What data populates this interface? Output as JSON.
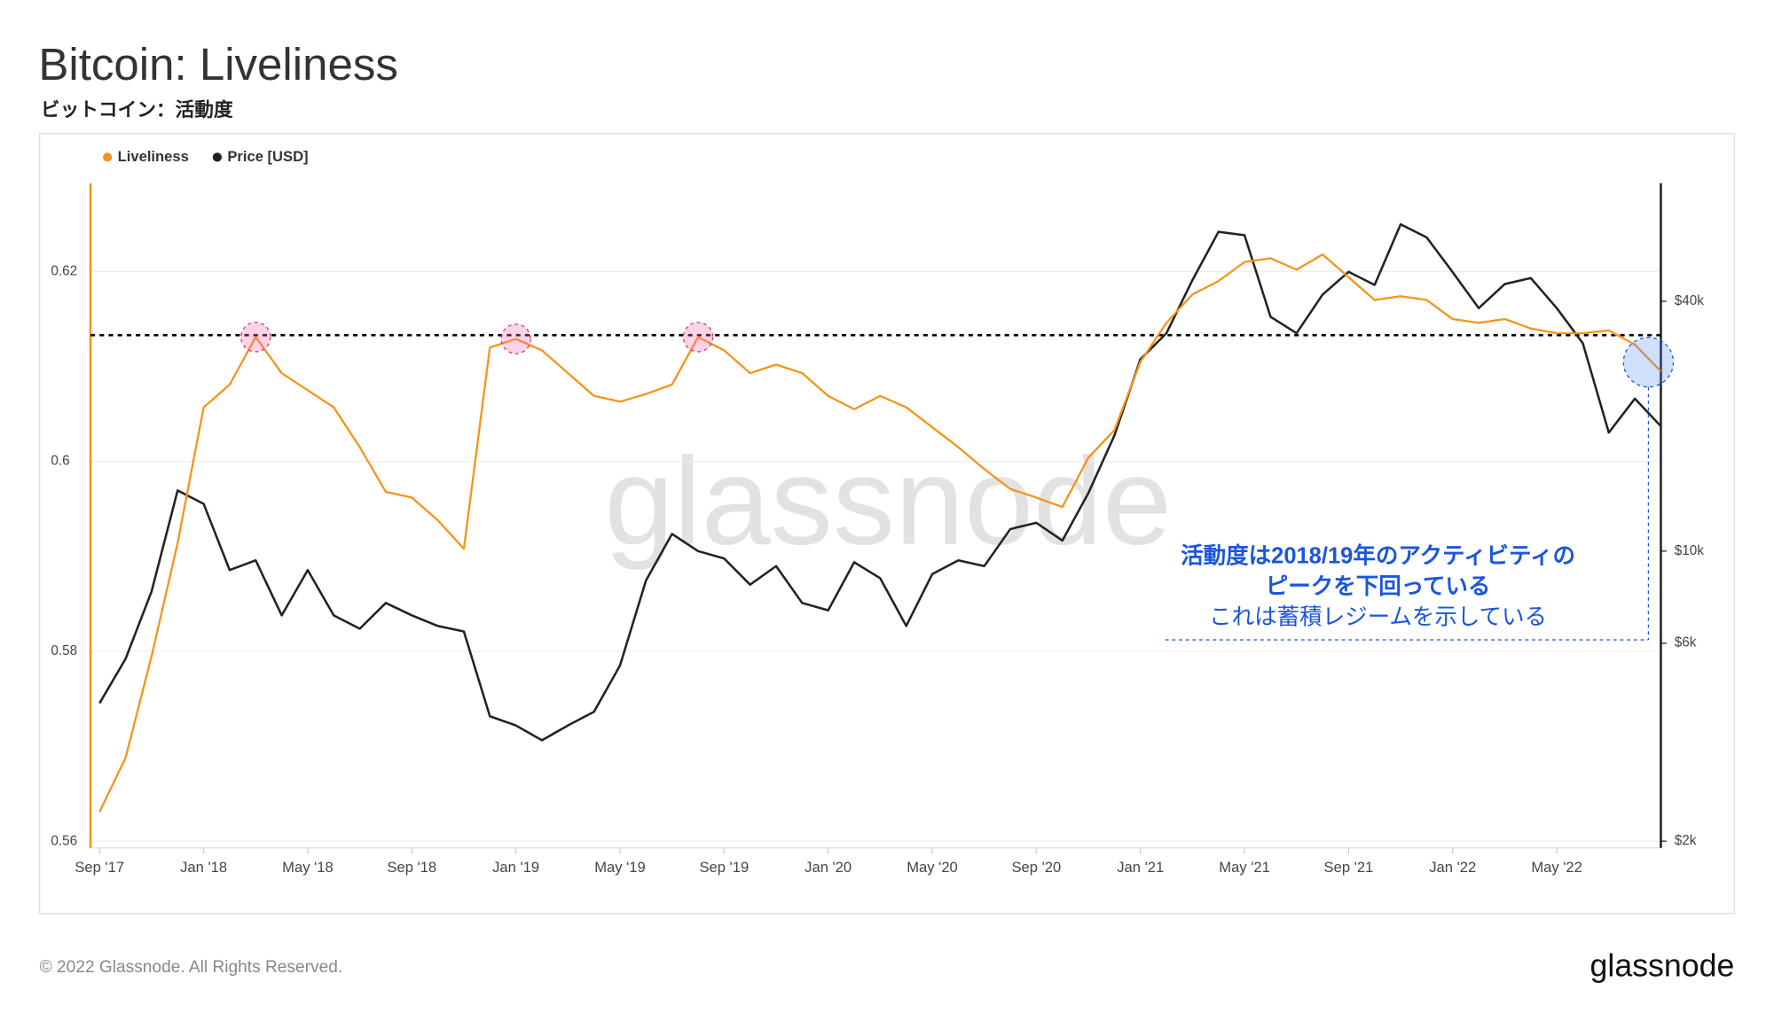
{
  "chart_data": {
    "type": "line",
    "title": "Bitcoin: Liveliness",
    "subtitle": "ビットコイン：活動度",
    "watermark": "glassnode",
    "footer": "© 2022 Glassnode. All Rights Reserved.",
    "brand": "glassnode",
    "annotations": [
      "活動度は2018/19年のアクティビティの",
      "ピークを下回っている",
      "これは蓄積レジームを示している"
    ],
    "reference_line": 0.6133,
    "x": [
      "2017-09",
      "2017-10",
      "2017-11",
      "2017-12",
      "2018-01",
      "2018-02",
      "2018-03",
      "2018-04",
      "2018-05",
      "2018-06",
      "2018-07",
      "2018-08",
      "2018-09",
      "2018-10",
      "2018-11",
      "2018-12",
      "2019-01",
      "2019-02",
      "2019-03",
      "2019-04",
      "2019-05",
      "2019-06",
      "2019-07",
      "2019-08",
      "2019-09",
      "2019-10",
      "2019-11",
      "2019-12",
      "2020-01",
      "2020-02",
      "2020-03",
      "2020-04",
      "2020-05",
      "2020-06",
      "2020-07",
      "2020-08",
      "2020-09",
      "2020-10",
      "2020-11",
      "2020-12",
      "2021-01",
      "2021-02",
      "2021-03",
      "2021-04",
      "2021-05",
      "2021-06",
      "2021-07",
      "2021-08",
      "2021-09",
      "2021-10",
      "2021-11",
      "2021-12",
      "2022-01",
      "2022-02",
      "2022-03",
      "2022-04",
      "2022-05",
      "2022-06",
      "2022-07",
      "2022-08",
      "2022-09"
    ],
    "xticks": [
      {
        "value": "2017-09",
        "label": "Sep '17"
      },
      {
        "value": "2018-01",
        "label": "Jan '18"
      },
      {
        "value": "2018-05",
        "label": "May '18"
      },
      {
        "value": "2018-09",
        "label": "Sep '18"
      },
      {
        "value": "2019-01",
        "label": "Jan '19"
      },
      {
        "value": "2019-05",
        "label": "May '19"
      },
      {
        "value": "2019-09",
        "label": "Sep '19"
      },
      {
        "value": "2020-01",
        "label": "Jan '20"
      },
      {
        "value": "2020-05",
        "label": "May '20"
      },
      {
        "value": "2020-09",
        "label": "Sep '20"
      },
      {
        "value": "2021-01",
        "label": "Jan '21"
      },
      {
        "value": "2021-05",
        "label": "May '21"
      },
      {
        "value": "2021-09",
        "label": "Sep '21"
      },
      {
        "value": "2022-01",
        "label": "Jan '22"
      },
      {
        "value": "2022-05",
        "label": "May '22"
      }
    ],
    "ylim": [
      0.5593,
      0.6293
    ],
    "yticks": [
      0.56,
      0.58,
      0.6,
      0.62
    ],
    "y2lim": [
      1926,
      77000
    ],
    "y2scale": "log",
    "y2ticks": [
      {
        "value": 2000,
        "label": "$2k"
      },
      {
        "value": 6000,
        "label": "$6k"
      },
      {
        "value": 10000,
        "label": "$10k"
      },
      {
        "value": 40000,
        "label": "$40k"
      }
    ],
    "grid": true,
    "series": [
      {
        "name": "Liveliness",
        "color": "#f7931a",
        "values": [
          0.5631,
          0.5688,
          0.5795,
          0.5914,
          0.6057,
          0.6081,
          0.6131,
          0.6093,
          0.6075,
          0.6057,
          0.6015,
          0.5968,
          0.5962,
          0.5938,
          0.5908,
          0.612,
          0.6129,
          0.6117,
          0.6093,
          0.6069,
          0.6063,
          0.6071,
          0.6081,
          0.6131,
          0.6117,
          0.6093,
          0.6102,
          0.6093,
          0.6069,
          0.6055,
          0.6069,
          0.6057,
          0.6036,
          0.6015,
          0.5992,
          0.5971,
          0.5962,
          0.5952,
          0.6004,
          0.6033,
          0.6105,
          0.6146,
          0.6176,
          0.619,
          0.621,
          0.6214,
          0.6202,
          0.6218,
          0.6194,
          0.617,
          0.6174,
          0.617,
          0.615,
          0.6146,
          0.615,
          0.614,
          0.6135,
          0.6135,
          0.6138,
          0.6123,
          0.6095
        ]
      },
      {
        "name": "Price [USD]",
        "color": "#222222",
        "axis": "y2",
        "values": [
          4300,
          5500,
          8000,
          14000,
          13000,
          9000,
          9500,
          7000,
          9000,
          7000,
          6500,
          7500,
          7000,
          6600,
          6400,
          4000,
          3800,
          3500,
          3800,
          4100,
          5300,
          8500,
          11000,
          10000,
          9600,
          8300,
          9200,
          7500,
          7200,
          9400,
          8600,
          6600,
          8800,
          9500,
          9200,
          11300,
          11700,
          10600,
          13800,
          19000,
          29000,
          33500,
          45000,
          58800,
          57700,
          36700,
          33500,
          41500,
          47100,
          43800,
          61300,
          57000,
          47000,
          38500,
          44000,
          45500,
          38500,
          31700,
          19300,
          23300,
          20000
        ]
      }
    ]
  }
}
